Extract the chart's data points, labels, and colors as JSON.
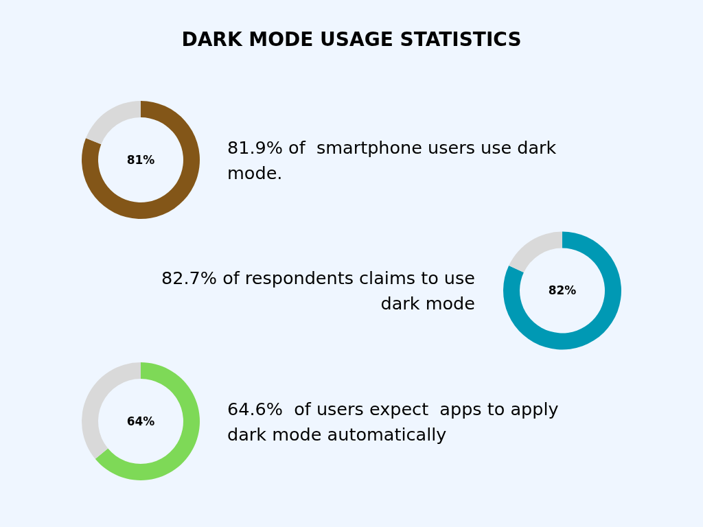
{
  "chart_data": [
    {
      "type": "donut",
      "title": "DARK MODE USAGE STATISTICS",
      "categories": [
        null,
        null
      ],
      "values": [
        81,
        19
      ],
      "colors": [
        "#835618",
        "#d9d9d9"
      ],
      "value_labels": [
        "81%",
        null
      ],
      "annotations": [
        "81.9% of  smartphone users use dark mode."
      ]
    },
    {
      "type": "donut",
      "categories": [
        null,
        null
      ],
      "values": [
        82,
        18
      ],
      "colors": [
        "#0099b4",
        "#d9d9d9"
      ],
      "value_labels": [
        "82%",
        null
      ],
      "annotations": [
        "82.7% of respondents claims to use dark mode"
      ]
    },
    {
      "type": "donut",
      "categories": [
        null,
        null
      ],
      "values": [
        64,
        36
      ],
      "colors": [
        "#7ed957",
        "#d9d9d9"
      ],
      "value_labels": [
        "64%",
        null
      ],
      "annotations": [
        "64.6%  of users expect  apps to apply dark mode automatically"
      ]
    }
  ]
}
